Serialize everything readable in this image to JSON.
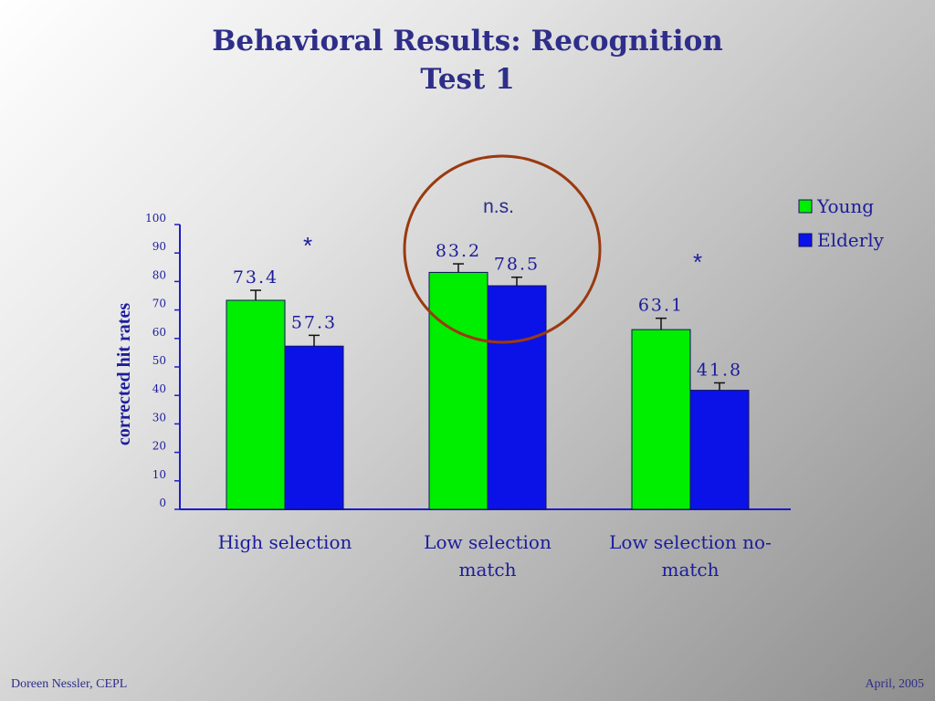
{
  "slide": {
    "title_line1": "Behavioral Results: Recognition",
    "title_line2": "Test 1",
    "footer_left": "Doreen Nessler, CEPL",
    "footer_right": "April, 2005"
  },
  "colors": {
    "young": "#00ee00",
    "elderly": "#0a12e8",
    "axis": "#1c1cc8",
    "text": "#1c1c9c",
    "circle": "#9a3a10"
  },
  "chart_data": {
    "type": "bar",
    "categories": [
      [
        "High selection"
      ],
      [
        "Low selection",
        "match"
      ],
      [
        "Low selection no-",
        "match"
      ]
    ],
    "series": [
      {
        "name": "Young",
        "values": [
          73.4,
          83.2,
          63.1
        ],
        "labels": [
          "73.4",
          "83.2",
          "63.1"
        ],
        "errors": [
          3.5,
          3.0,
          4.0
        ]
      },
      {
        "name": "Elderly",
        "values": [
          57.3,
          78.5,
          41.8
        ],
        "labels": [
          "57.3",
          "78.5",
          "41.8"
        ],
        "errors": [
          3.8,
          3.0,
          2.6
        ]
      }
    ],
    "ylabel": "corrected hit rates",
    "ylim": [
      0,
      100
    ],
    "yticks": [
      0,
      10,
      20,
      30,
      40,
      50,
      60,
      70,
      80,
      90,
      100
    ],
    "significance": [
      "*",
      "",
      "*"
    ],
    "annotation": "n.s.",
    "legend_position": "top-right",
    "grid": false
  }
}
